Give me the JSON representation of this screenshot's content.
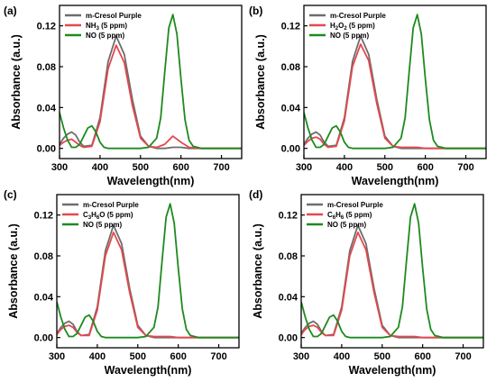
{
  "chart_data": [
    {
      "type": "line",
      "panel_label": "(a)",
      "xlabel": "Wavelength(nm)",
      "ylabel": "Absorbance (a.u.)",
      "xlim": [
        300,
        750
      ],
      "ylim": [
        -0.01,
        0.14
      ],
      "xticks": [
        "300",
        "400",
        "500",
        "600",
        "700"
      ],
      "yticks": [
        "0.00",
        "0.04",
        "0.08",
        "0.12"
      ],
      "legend_position": "top-left",
      "series": [
        {
          "legend": {
            "main": "m-Cresol Purple",
            "sub": "",
            "tail": ""
          },
          "color": "#6d6d6d",
          "x": [
            300,
            310,
            320,
            330,
            340,
            350,
            360,
            380,
            400,
            420,
            440,
            460,
            480,
            500,
            520,
            540,
            560,
            580,
            600,
            620,
            650,
            700,
            750
          ],
          "y": [
            0.004,
            0.01,
            0.014,
            0.016,
            0.013,
            0.006,
            0.002,
            0.003,
            0.03,
            0.085,
            0.11,
            0.092,
            0.048,
            0.012,
            0.002,
            0.0,
            0.0,
            0.001,
            0.001,
            0.0,
            0.0,
            0.0,
            0.0
          ]
        },
        {
          "legend": {
            "main": "NH",
            "sub": "3",
            "tail": " (5 ppm)"
          },
          "color": "#e5484d",
          "x": [
            300,
            310,
            320,
            330,
            340,
            350,
            360,
            380,
            400,
            420,
            440,
            460,
            480,
            500,
            520,
            540,
            560,
            580,
            600,
            620,
            650,
            700,
            750
          ],
          "y": [
            0.003,
            0.006,
            0.008,
            0.009,
            0.006,
            0.003,
            0.001,
            0.002,
            0.026,
            0.078,
            0.101,
            0.084,
            0.042,
            0.01,
            0.002,
            0.001,
            0.004,
            0.012,
            0.006,
            0.001,
            0.0,
            0.0,
            0.0
          ]
        },
        {
          "legend": {
            "main": "NO (5 ppm)",
            "sub": "",
            "tail": ""
          },
          "color": "#1e8a1e",
          "x": [
            300,
            310,
            320,
            330,
            340,
            350,
            360,
            370,
            380,
            390,
            400,
            410,
            420,
            460,
            500,
            520,
            540,
            550,
            560,
            570,
            580,
            590,
            600,
            610,
            620,
            630,
            650,
            700,
            750
          ],
          "y": [
            0.035,
            0.02,
            0.008,
            0.001,
            0.001,
            0.004,
            0.012,
            0.02,
            0.022,
            0.016,
            0.006,
            0.001,
            0.0,
            0.0,
            0.0,
            0.001,
            0.01,
            0.03,
            0.075,
            0.118,
            0.131,
            0.112,
            0.068,
            0.028,
            0.008,
            0.002,
            0.0,
            0.0,
            0.0
          ]
        }
      ]
    },
    {
      "type": "line",
      "panel_label": "(b)",
      "xlabel": "Wavelength(nm)",
      "ylabel": "Absorbance (a.u.)",
      "xlim": [
        300,
        750
      ],
      "ylim": [
        -0.01,
        0.14
      ],
      "xticks": [
        "300",
        "400",
        "500",
        "600",
        "700"
      ],
      "yticks": [
        "0.00",
        "0.04",
        "0.08",
        "0.12"
      ],
      "legend_position": "top-left",
      "series": [
        {
          "legend": {
            "main": "m-Cresol Purple",
            "sub": "",
            "tail": ""
          },
          "color": "#6d6d6d",
          "x": [
            300,
            310,
            320,
            330,
            340,
            350,
            360,
            380,
            400,
            420,
            440,
            460,
            480,
            500,
            520,
            540,
            560,
            580,
            600,
            620,
            650,
            700,
            750
          ],
          "y": [
            0.004,
            0.01,
            0.014,
            0.016,
            0.013,
            0.006,
            0.002,
            0.003,
            0.03,
            0.085,
            0.11,
            0.092,
            0.048,
            0.012,
            0.002,
            0.0,
            0.0,
            0.0,
            0.0,
            0.0,
            0.0,
            0.0,
            0.0
          ]
        },
        {
          "legend": {
            "main": "H",
            "sub": "2",
            "tail": "O",
            "sub2": "2",
            "tail2": " (5 ppm)"
          },
          "color": "#e5484d",
          "x": [
            300,
            310,
            320,
            330,
            340,
            350,
            360,
            380,
            400,
            420,
            440,
            460,
            480,
            500,
            520,
            540,
            560,
            580,
            600,
            620,
            650,
            700,
            750
          ],
          "y": [
            0.003,
            0.007,
            0.01,
            0.011,
            0.009,
            0.004,
            0.001,
            0.002,
            0.027,
            0.08,
            0.102,
            0.086,
            0.044,
            0.01,
            0.002,
            0.001,
            0.001,
            0.001,
            0.0,
            0.0,
            0.0,
            0.0,
            0.0
          ]
        },
        {
          "legend": {
            "main": "NO (5 ppm)",
            "sub": "",
            "tail": ""
          },
          "color": "#1e8a1e",
          "x": [
            300,
            310,
            320,
            330,
            340,
            350,
            360,
            370,
            380,
            390,
            400,
            410,
            420,
            460,
            500,
            520,
            540,
            550,
            560,
            570,
            580,
            590,
            600,
            610,
            620,
            630,
            650,
            700,
            750
          ],
          "y": [
            0.035,
            0.02,
            0.008,
            0.001,
            0.001,
            0.004,
            0.012,
            0.02,
            0.022,
            0.016,
            0.006,
            0.001,
            0.0,
            0.0,
            0.0,
            0.001,
            0.01,
            0.03,
            0.075,
            0.118,
            0.131,
            0.112,
            0.068,
            0.028,
            0.008,
            0.002,
            0.0,
            0.0,
            0.0
          ]
        }
      ]
    },
    {
      "type": "line",
      "panel_label": "(c)",
      "xlabel": "Wavelength(nm)",
      "ylabel": "Absorbance (a.u.)",
      "xlim": [
        300,
        750
      ],
      "ylim": [
        -0.01,
        0.14
      ],
      "xticks": [
        "300",
        "400",
        "500",
        "600",
        "700"
      ],
      "yticks": [
        "0.00",
        "0.04",
        "0.08",
        "0.12"
      ],
      "legend_position": "top-left",
      "series": [
        {
          "legend": {
            "main": "m-Cresol Purple",
            "sub": "",
            "tail": ""
          },
          "color": "#6d6d6d",
          "x": [
            300,
            310,
            320,
            330,
            340,
            350,
            360,
            380,
            400,
            420,
            440,
            460,
            480,
            500,
            520,
            540,
            560,
            580,
            600,
            620,
            650,
            700,
            750
          ],
          "y": [
            0.004,
            0.01,
            0.014,
            0.016,
            0.013,
            0.006,
            0.002,
            0.003,
            0.03,
            0.085,
            0.11,
            0.092,
            0.048,
            0.012,
            0.002,
            0.0,
            0.0,
            0.0,
            0.0,
            0.0,
            0.0,
            0.0,
            0.0
          ]
        },
        {
          "legend": {
            "main": "C",
            "sub": "3",
            "tail": "H",
            "sub2": "6",
            "tail2": "O (5 ppm)"
          },
          "color": "#e5484d",
          "x": [
            300,
            310,
            320,
            330,
            340,
            350,
            360,
            380,
            400,
            420,
            440,
            460,
            480,
            500,
            520,
            540,
            560,
            580,
            600,
            620,
            650,
            700,
            750
          ],
          "y": [
            0.003,
            0.008,
            0.011,
            0.012,
            0.01,
            0.005,
            0.002,
            0.002,
            0.027,
            0.08,
            0.103,
            0.086,
            0.044,
            0.01,
            0.002,
            0.001,
            0.001,
            0.001,
            0.0,
            0.0,
            0.0,
            0.0,
            0.0
          ]
        },
        {
          "legend": {
            "main": "NO (5 ppm)",
            "sub": "",
            "tail": ""
          },
          "color": "#1e8a1e",
          "x": [
            300,
            310,
            320,
            330,
            340,
            350,
            360,
            370,
            380,
            390,
            400,
            410,
            420,
            460,
            500,
            520,
            540,
            550,
            560,
            570,
            580,
            590,
            600,
            610,
            620,
            630,
            650,
            700,
            750
          ],
          "y": [
            0.035,
            0.02,
            0.008,
            0.001,
            0.001,
            0.004,
            0.012,
            0.02,
            0.022,
            0.016,
            0.006,
            0.001,
            0.0,
            0.0,
            0.0,
            0.001,
            0.01,
            0.03,
            0.075,
            0.118,
            0.131,
            0.112,
            0.068,
            0.028,
            0.008,
            0.002,
            0.0,
            0.0,
            0.0
          ]
        }
      ]
    },
    {
      "type": "line",
      "panel_label": "(d)",
      "xlabel": "Wavelength(nm)",
      "ylabel": "Absorbance (a.u.)",
      "xlim": [
        300,
        750
      ],
      "ylim": [
        -0.01,
        0.14
      ],
      "xticks": [
        "300",
        "400",
        "500",
        "600",
        "700"
      ],
      "yticks": [
        "0.00",
        "0.04",
        "0.08",
        "0.12"
      ],
      "legend_position": "top-left",
      "series": [
        {
          "legend": {
            "main": "m-Cresol Purple",
            "sub": "",
            "tail": ""
          },
          "color": "#6d6d6d",
          "x": [
            300,
            310,
            320,
            330,
            340,
            350,
            360,
            380,
            400,
            420,
            440,
            460,
            480,
            500,
            520,
            540,
            560,
            580,
            600,
            620,
            650,
            700,
            750
          ],
          "y": [
            0.004,
            0.01,
            0.014,
            0.016,
            0.013,
            0.006,
            0.002,
            0.003,
            0.03,
            0.085,
            0.11,
            0.092,
            0.048,
            0.012,
            0.002,
            0.0,
            0.0,
            0.0,
            0.0,
            0.0,
            0.0,
            0.0,
            0.0
          ]
        },
        {
          "legend": {
            "main": "C",
            "sub": "6",
            "tail": "H",
            "sub2": "6",
            "tail2": " (5 ppm)"
          },
          "color": "#e5484d",
          "x": [
            300,
            310,
            320,
            330,
            340,
            350,
            360,
            380,
            400,
            420,
            440,
            460,
            480,
            500,
            520,
            540,
            560,
            580,
            600,
            620,
            650,
            700,
            750
          ],
          "y": [
            0.003,
            0.008,
            0.011,
            0.012,
            0.01,
            0.005,
            0.002,
            0.002,
            0.027,
            0.08,
            0.103,
            0.086,
            0.044,
            0.01,
            0.002,
            0.001,
            0.001,
            0.001,
            0.0,
            0.0,
            0.0,
            0.0,
            0.0
          ]
        },
        {
          "legend": {
            "main": "NO (5 ppm)",
            "sub": "",
            "tail": ""
          },
          "color": "#1e8a1e",
          "x": [
            300,
            310,
            320,
            330,
            340,
            350,
            360,
            370,
            380,
            390,
            400,
            410,
            420,
            460,
            500,
            520,
            540,
            550,
            560,
            570,
            580,
            590,
            600,
            610,
            620,
            630,
            650,
            700,
            750
          ],
          "y": [
            0.035,
            0.02,
            0.008,
            0.001,
            0.001,
            0.004,
            0.012,
            0.02,
            0.022,
            0.016,
            0.006,
            0.001,
            0.0,
            0.0,
            0.0,
            0.001,
            0.01,
            0.03,
            0.075,
            0.118,
            0.131,
            0.112,
            0.068,
            0.028,
            0.008,
            0.002,
            0.0,
            0.0,
            0.0
          ]
        }
      ]
    }
  ]
}
